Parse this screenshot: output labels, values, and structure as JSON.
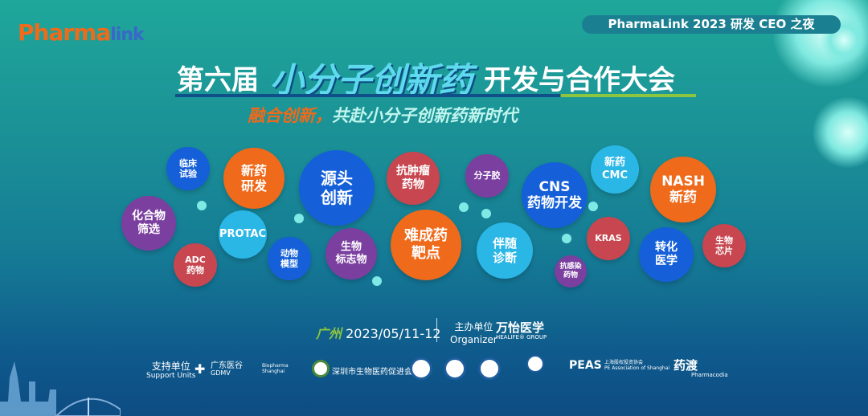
{
  "header": {
    "logo_part1": "Pharma",
    "logo_part2": "link",
    "event_tag": "PharmaLink 2023 研发 CEO 之夜"
  },
  "title": {
    "prefix": "第六届",
    "highlight": "小分子创新药",
    "suffix": "开发与合作大会"
  },
  "slogan": {
    "part1": "融合创新，",
    "part2": "共赴小分子创新药新时代"
  },
  "colors": {
    "orange": "#ef6a1a",
    "blue": "#1560d8",
    "purple": "#7b3fa0",
    "red": "#c7464f",
    "cyan": "#2bb7e6"
  },
  "topics": [
    {
      "l1": "临床",
      "l2": "试验",
      "color": "blue"
    },
    {
      "l1": "新药",
      "l2": "研发",
      "color": "orange"
    },
    {
      "l1": "源头",
      "l2": "创新",
      "color": "blue"
    },
    {
      "l1": "抗肿瘤",
      "l2": "药物",
      "color": "red"
    },
    {
      "l1": "分子胶",
      "l2": "",
      "color": "purple"
    },
    {
      "l1": "CNS",
      "l2": "药物开发",
      "color": "blue"
    },
    {
      "l1": "新药",
      "l2": "CMC",
      "color": "cyan"
    },
    {
      "l1": "NASH",
      "l2": "新药",
      "color": "orange"
    },
    {
      "l1": "化合物",
      "l2": "筛选",
      "color": "purple"
    },
    {
      "l1": "PROTAC",
      "l2": "",
      "color": "cyan"
    },
    {
      "l1": "ADC",
      "l2": "药物",
      "color": "red"
    },
    {
      "l1": "动物",
      "l2": "模型",
      "color": "blue"
    },
    {
      "l1": "生物",
      "l2": "标志物",
      "color": "purple"
    },
    {
      "l1": "难成药",
      "l2": "靶点",
      "color": "orange"
    },
    {
      "l1": "伴随",
      "l2": "诊断",
      "color": "cyan"
    },
    {
      "l1": "KRAS",
      "l2": "",
      "color": "red"
    },
    {
      "l1": "转化",
      "l2": "医学",
      "color": "blue"
    },
    {
      "l1": "生物",
      "l2": "芯片",
      "color": "red"
    },
    {
      "l1": "抗感染",
      "l2": "药物",
      "color": "purple"
    }
  ],
  "event": {
    "city": "广州",
    "date": "2023/05/11-12",
    "organizer_cn": "主办单位",
    "organizer_en": "Organizer",
    "organizer_name": "万怡医学",
    "organizer_sub": "HEALIFE® GROUP"
  },
  "support": {
    "label_cn": "支持单位",
    "label_en": "Support Units",
    "logos": [
      "广东医谷",
      "GDMV",
      "Biopharma Shanghai",
      "深圳市生物医药促进会",
      "PEAS",
      "上海股权投资协会",
      "PE Association of Shanghai",
      "药渡",
      "Pharmacodia"
    ]
  }
}
